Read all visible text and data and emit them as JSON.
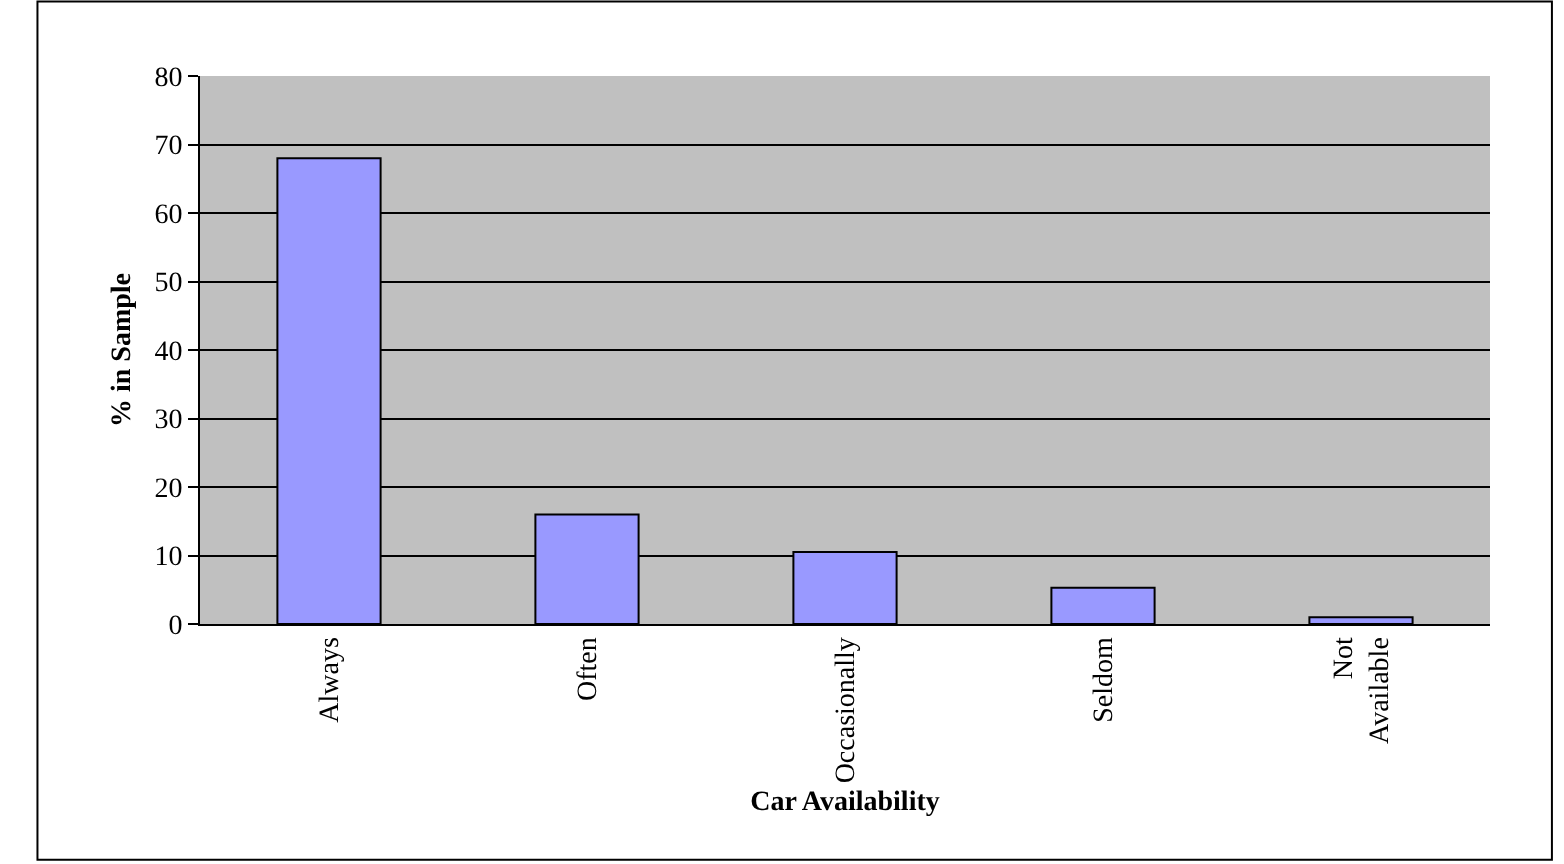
{
  "chart_data": {
    "type": "bar",
    "xlabel": "Car Availability",
    "ylabel": "% in Sample",
    "categories": [
      "Always",
      "Often",
      "Occasionally",
      "Seldom",
      "Not Available"
    ],
    "values": [
      68,
      16,
      10.5,
      5.3,
      1
    ],
    "color": "#9999ff",
    "ylim": [
      0,
      80
    ],
    "yticks": [
      0,
      10,
      20,
      30,
      40,
      50,
      60,
      70,
      80
    ],
    "grid": "y",
    "legend": false
  }
}
